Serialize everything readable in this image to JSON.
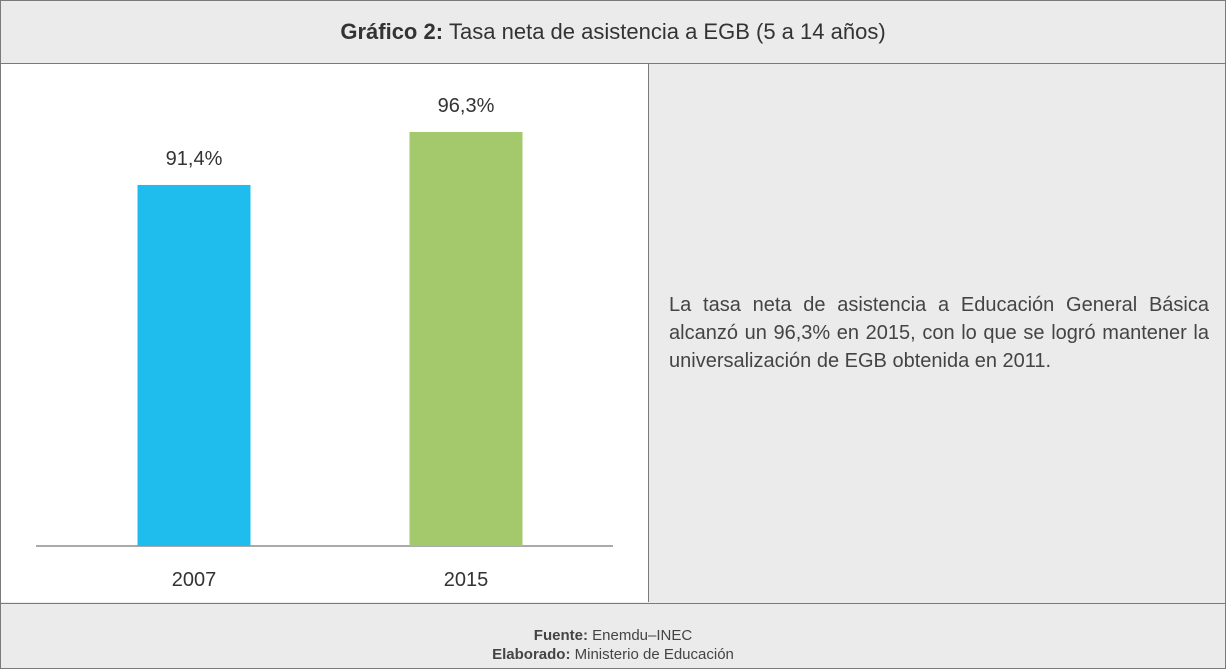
{
  "chart_data": {
    "type": "bar",
    "title_label": "Gráfico 2:",
    "title": "Tasa neta de asistencia a EGB (5 a 14 años)",
    "categories": [
      "2007",
      "2015"
    ],
    "values": [
      91.4,
      96.3
    ],
    "value_labels": [
      "91,4%",
      "96,3%"
    ],
    "colors": [
      "#1ebdee",
      "#a3c96c"
    ],
    "ylim": [
      58,
      100
    ]
  },
  "description": "La tasa neta de asistencia a Educación General Básica alcanzó un 96,3% en 2015, con lo que se logró mantener la universalización de EGB obtenida en 2011.",
  "footer": {
    "source_label": "Fuente:",
    "source": "Enemdu–INEC",
    "made_label": "Elaborado:",
    "made": "Ministerio de Educación"
  }
}
